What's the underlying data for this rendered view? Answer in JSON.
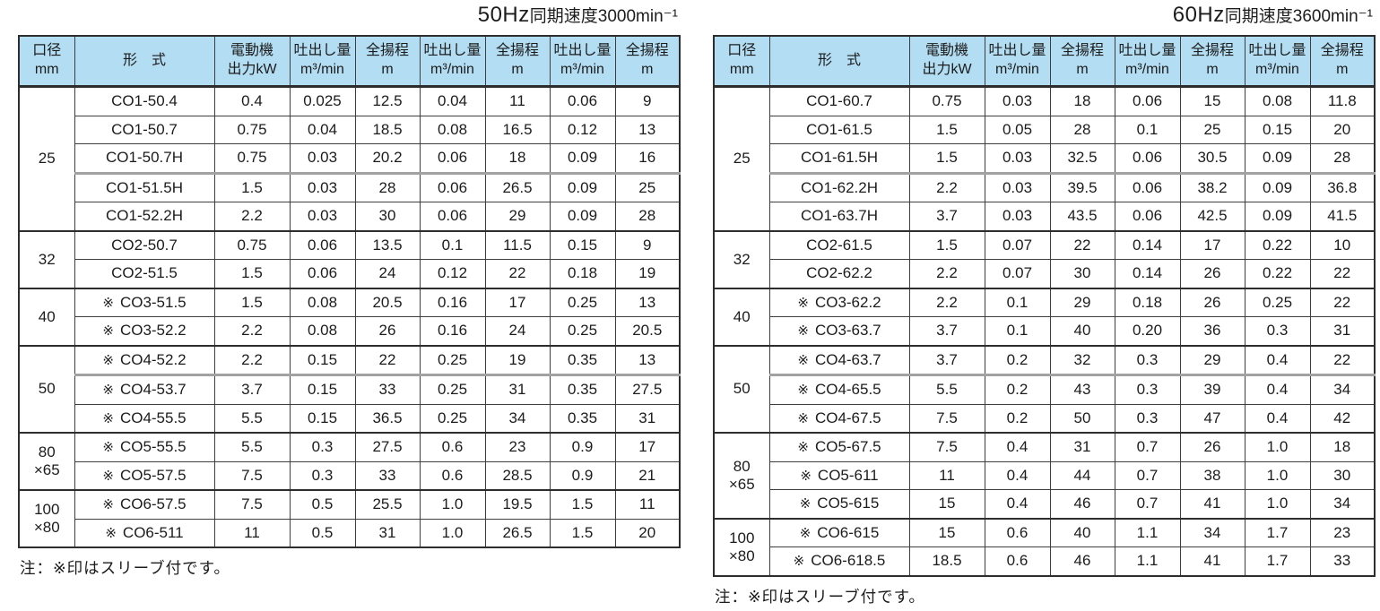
{
  "colors": {
    "cell_blue": "#b3ddf2",
    "border_dark": "#2d2d2d",
    "divider_gray": "#a2a2a2"
  },
  "sleeve_marker": "※",
  "columns": {
    "bore_l1": "口径",
    "bore_l2": "mm",
    "model": "形　式",
    "power_l1": "電動機",
    "power_l2": "出力kW",
    "flow_l1": "吐出し量",
    "flow_l2": "m³/min",
    "head_l1": "全揚程",
    "head_l2": "m"
  },
  "tables": [
    {
      "title_freq": "50Hz",
      "title_rest": "同期速度3000min⁻¹",
      "note": "注：※印はスリーブ付です。",
      "groups": [
        {
          "bore_lines": [
            "25"
          ],
          "rows": [
            {
              "sleeve": false,
              "model": "CO1-50.4",
              "power": "0.4",
              "values": [
                "0.025",
                "12.5",
                "0.04",
                "11",
                "0.06",
                "9"
              ]
            },
            {
              "sleeve": false,
              "model": "CO1-50.7",
              "power": "0.75",
              "values": [
                "0.04",
                "18.5",
                "0.08",
                "16.5",
                "0.12",
                "13"
              ]
            },
            {
              "sleeve": false,
              "model": "CO1-50.7H",
              "power": "0.75",
              "values": [
                "0.03",
                "20.2",
                "0.06",
                "18",
                "0.09",
                "16"
              ]
            },
            {
              "sleeve": false,
              "model": "CO1-51.5H",
              "power": "1.5",
              "divider": true,
              "values": [
                "0.03",
                "28",
                "0.06",
                "26.5",
                "0.09",
                "25"
              ]
            },
            {
              "sleeve": false,
              "model": "CO1-52.2H",
              "power": "2.2",
              "values": [
                "0.03",
                "30",
                "0.06",
                "29",
                "0.09",
                "28"
              ]
            }
          ]
        },
        {
          "bore_lines": [
            "32"
          ],
          "rows": [
            {
              "sleeve": false,
              "model": "CO2-50.7",
              "power": "0.75",
              "values": [
                "0.06",
                "13.5",
                "0.1",
                "11.5",
                "0.15",
                "9"
              ]
            },
            {
              "sleeve": false,
              "model": "CO2-51.5",
              "power": "1.5",
              "values": [
                "0.06",
                "24",
                "0.12",
                "22",
                "0.18",
                "19"
              ]
            }
          ]
        },
        {
          "bore_lines": [
            "40"
          ],
          "rows": [
            {
              "sleeve": true,
              "model": "CO3-51.5",
              "power": "1.5",
              "values": [
                "0.08",
                "20.5",
                "0.16",
                "17",
                "0.25",
                "13"
              ]
            },
            {
              "sleeve": true,
              "model": "CO3-52.2",
              "power": "2.2",
              "values": [
                "0.08",
                "26",
                "0.16",
                "24",
                "0.25",
                "20.5"
              ]
            }
          ]
        },
        {
          "bore_lines": [
            "50"
          ],
          "rows": [
            {
              "sleeve": true,
              "model": "CO4-52.2",
              "power": "2.2",
              "values": [
                "0.15",
                "22",
                "0.25",
                "19",
                "0.35",
                "13"
              ]
            },
            {
              "sleeve": true,
              "model": "CO4-53.7",
              "power": "3.7",
              "divider": true,
              "values": [
                "0.15",
                "33",
                "0.25",
                "31",
                "0.35",
                "27.5"
              ]
            },
            {
              "sleeve": true,
              "model": "CO4-55.5",
              "power": "5.5",
              "values": [
                "0.15",
                "36.5",
                "0.25",
                "34",
                "0.35",
                "31"
              ]
            }
          ]
        },
        {
          "bore_lines": [
            "80",
            "×65"
          ],
          "rows": [
            {
              "sleeve": true,
              "model": "CO5-55.5",
              "power": "5.5",
              "values": [
                "0.3",
                "27.5",
                "0.6",
                "23",
                "0.9",
                "17"
              ]
            },
            {
              "sleeve": true,
              "model": "CO5-57.5",
              "power": "7.5",
              "values": [
                "0.3",
                "33",
                "0.6",
                "28.5",
                "0.9",
                "21"
              ]
            }
          ]
        },
        {
          "bore_lines": [
            "100",
            "×80"
          ],
          "rows": [
            {
              "sleeve": true,
              "model": "CO6-57.5",
              "power": "7.5",
              "values": [
                "0.5",
                "25.5",
                "1.0",
                "19.5",
                "1.5",
                "11"
              ]
            },
            {
              "sleeve": true,
              "model": "CO6-511",
              "power": "11",
              "values": [
                "0.5",
                "31",
                "1.0",
                "26.5",
                "1.5",
                "20"
              ]
            }
          ]
        }
      ]
    },
    {
      "title_freq": "60Hz",
      "title_rest": "同期速度3600min⁻¹",
      "note": "注：※印はスリーブ付です。",
      "groups": [
        {
          "bore_lines": [
            "25"
          ],
          "rows": [
            {
              "sleeve": false,
              "model": "CO1-60.7",
              "power": "0.75",
              "values": [
                "0.03",
                "18",
                "0.06",
                "15",
                "0.08",
                "11.8"
              ]
            },
            {
              "sleeve": false,
              "model": "CO1-61.5",
              "power": "1.5",
              "values": [
                "0.05",
                "28",
                "0.1",
                "25",
                "0.15",
                "20"
              ]
            },
            {
              "sleeve": false,
              "model": "CO1-61.5H",
              "power": "1.5",
              "values": [
                "0.03",
                "32.5",
                "0.06",
                "30.5",
                "0.09",
                "28"
              ]
            },
            {
              "sleeve": false,
              "model": "CO1-62.2H",
              "power": "2.2",
              "divider": true,
              "values": [
                "0.03",
                "39.5",
                "0.06",
                "38.2",
                "0.09",
                "36.8"
              ]
            },
            {
              "sleeve": false,
              "model": "CO1-63.7H",
              "power": "3.7",
              "values": [
                "0.03",
                "43.5",
                "0.06",
                "42.5",
                "0.09",
                "41.5"
              ]
            }
          ]
        },
        {
          "bore_lines": [
            "32"
          ],
          "rows": [
            {
              "sleeve": false,
              "model": "CO2-61.5",
              "power": "1.5",
              "values": [
                "0.07",
                "22",
                "0.14",
                "17",
                "0.22",
                "10"
              ]
            },
            {
              "sleeve": false,
              "model": "CO2-62.2",
              "power": "2.2",
              "values": [
                "0.07",
                "30",
                "0.14",
                "26",
                "0.22",
                "22"
              ]
            }
          ]
        },
        {
          "bore_lines": [
            "40"
          ],
          "rows": [
            {
              "sleeve": true,
              "model": "CO3-62.2",
              "power": "2.2",
              "values": [
                "0.1",
                "29",
                "0.18",
                "26",
                "0.25",
                "22"
              ]
            },
            {
              "sleeve": true,
              "model": "CO3-63.7",
              "power": "3.7",
              "values": [
                "0.1",
                "40",
                "0.20",
                "36",
                "0.3",
                "31"
              ]
            }
          ]
        },
        {
          "bore_lines": [
            "50"
          ],
          "rows": [
            {
              "sleeve": true,
              "model": "CO4-63.7",
              "power": "3.7",
              "values": [
                "0.2",
                "32",
                "0.3",
                "29",
                "0.4",
                "22"
              ]
            },
            {
              "sleeve": true,
              "model": "CO4-65.5",
              "power": "5.5",
              "divider": true,
              "values": [
                "0.2",
                "43",
                "0.3",
                "39",
                "0.4",
                "34"
              ]
            },
            {
              "sleeve": true,
              "model": "CO4-67.5",
              "power": "7.5",
              "values": [
                "0.2",
                "50",
                "0.3",
                "47",
                "0.4",
                "42"
              ]
            }
          ]
        },
        {
          "bore_lines": [
            "80",
            "×65"
          ],
          "rows": [
            {
              "sleeve": true,
              "model": "CO5-67.5",
              "power": "7.5",
              "values": [
                "0.4",
                "31",
                "0.7",
                "26",
                "1.0",
                "18"
              ]
            },
            {
              "sleeve": true,
              "model": "CO5-611",
              "power": "11",
              "values": [
                "0.4",
                "44",
                "0.7",
                "38",
                "1.0",
                "30"
              ]
            },
            {
              "sleeve": true,
              "model": "CO5-615",
              "power": "15",
              "values": [
                "0.4",
                "46",
                "0.7",
                "41",
                "1.0",
                "34"
              ]
            }
          ]
        },
        {
          "bore_lines": [
            "100",
            "×80"
          ],
          "rows": [
            {
              "sleeve": true,
              "model": "CO6-615",
              "power": "15",
              "values": [
                "0.6",
                "40",
                "1.1",
                "34",
                "1.7",
                "23"
              ]
            },
            {
              "sleeve": true,
              "model": "CO6-618.5",
              "power": "18.5",
              "values": [
                "0.6",
                "46",
                "1.1",
                "41",
                "1.7",
                "33"
              ]
            }
          ]
        }
      ]
    }
  ]
}
